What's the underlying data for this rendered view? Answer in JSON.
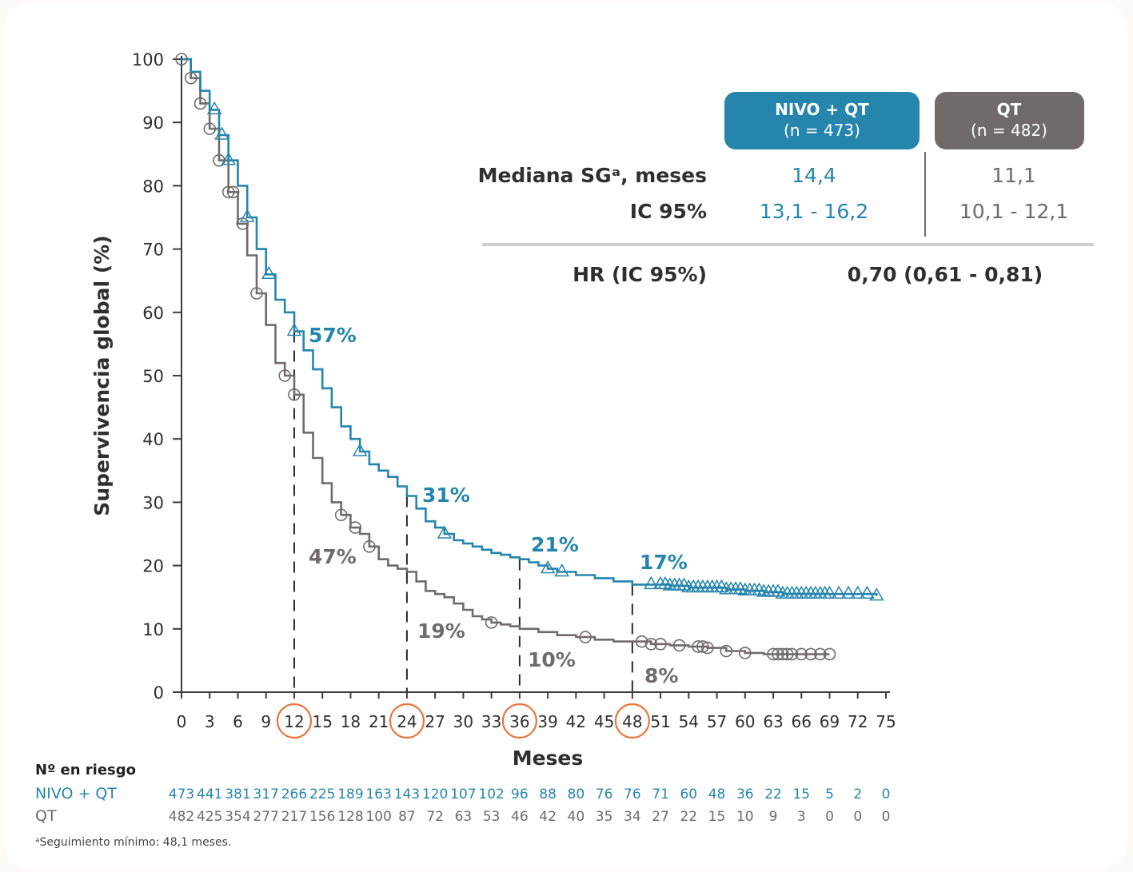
{
  "colors": {
    "nivo": "#2585ad",
    "qt": "#716a6b",
    "accent": "#e8763b",
    "axis": "#3b3b3b",
    "text": "#2f2f2f"
  },
  "chart_data": {
    "type": "line",
    "subtype": "kaplan-meier",
    "xlabel": "Meses",
    "ylabel": "Supervivencia global (%)",
    "xlim": [
      0,
      75
    ],
    "ylim": [
      0,
      100
    ],
    "xticks": [
      0,
      3,
      6,
      9,
      12,
      15,
      18,
      21,
      24,
      27,
      30,
      33,
      36,
      39,
      42,
      45,
      48,
      51,
      54,
      57,
      60,
      63,
      66,
      69,
      72,
      75
    ],
    "yticks": [
      0,
      10,
      20,
      30,
      40,
      50,
      60,
      70,
      80,
      90,
      100
    ],
    "highlighted_xticks": [
      12,
      24,
      36,
      48
    ],
    "grid": false,
    "series": [
      {
        "name": "NIVO + QT",
        "n_label": "(n = 473)",
        "color": "#2585ad",
        "marker": "triangle",
        "x": [
          0,
          1,
          2,
          3,
          4,
          5,
          6,
          7,
          8,
          9,
          10,
          11,
          12,
          13,
          14,
          15,
          16,
          17,
          18,
          19,
          20,
          21,
          22,
          23,
          24,
          25,
          26,
          27,
          28,
          29,
          30,
          31,
          32,
          33,
          34,
          35,
          36,
          37,
          38,
          39,
          40,
          42,
          44,
          46,
          48,
          50,
          52,
          54,
          56,
          58,
          60,
          62,
          64,
          66,
          68,
          70,
          72,
          74
        ],
        "y": [
          100,
          98,
          95,
          92,
          88,
          84,
          80,
          75,
          70,
          66,
          62,
          60,
          57,
          54,
          51,
          48,
          45,
          42,
          40,
          38,
          36,
          35,
          34,
          32.5,
          31,
          29,
          27,
          26,
          25,
          24,
          23.5,
          23,
          22.5,
          22,
          21.7,
          21.3,
          21,
          20.5,
          20,
          19.5,
          19,
          18.5,
          18,
          17.5,
          17,
          17,
          16.8,
          16.5,
          16.5,
          16.2,
          16,
          15.8,
          15.5,
          15.5,
          15.5,
          15.5,
          15.5,
          15.2
        ],
        "censor_x": [
          3.5,
          4.3,
          5,
          7,
          9.3,
          12,
          19,
          28,
          39,
          40.5,
          50,
          51,
          51.5,
          52,
          52.5,
          53,
          53.5,
          54,
          54.5,
          55,
          55.5,
          56,
          56.5,
          57,
          57.5,
          58,
          58.5,
          59,
          59.5,
          60,
          60.5,
          61,
          61.5,
          62,
          62.5,
          63,
          63.5,
          64,
          64.5,
          65,
          65.5,
          66,
          66.5,
          67,
          67.5,
          68,
          68.5,
          69,
          70,
          71,
          72,
          73,
          74
        ]
      },
      {
        "name": "QT",
        "n_label": "(n = 482)",
        "color": "#716a6b",
        "marker": "circle",
        "x": [
          0,
          1,
          2,
          3,
          4,
          5,
          6,
          7,
          8,
          9,
          10,
          11,
          12,
          13,
          14,
          15,
          16,
          17,
          18,
          19,
          20,
          21,
          22,
          23,
          24,
          25,
          26,
          27,
          28,
          29,
          30,
          31,
          32,
          33,
          34,
          35,
          36,
          38,
          40,
          42,
          44,
          46,
          48,
          50,
          52,
          54,
          56,
          58,
          60,
          62,
          64,
          66,
          68,
          69
        ],
        "y": [
          100,
          97,
          93,
          89,
          84,
          79,
          74,
          69,
          63,
          58,
          52,
          50,
          47,
          41,
          37,
          33,
          30,
          28,
          26,
          25,
          23,
          21,
          20,
          19.5,
          19,
          17.5,
          16,
          15.5,
          15,
          14,
          13,
          12,
          11.5,
          11,
          10.7,
          10.4,
          10,
          9.5,
          9,
          8.7,
          8.3,
          8,
          8,
          7.6,
          7.4,
          7.2,
          7,
          6.5,
          6.2,
          6,
          6,
          6,
          6,
          6
        ],
        "censor_x": [
          0,
          1,
          2,
          3,
          4,
          5,
          5.5,
          6.5,
          8,
          11,
          12,
          17,
          18.5,
          20,
          33,
          43,
          49,
          50,
          51,
          53,
          55,
          55.5,
          56,
          58,
          60,
          63,
          63.5,
          64,
          64.5,
          65,
          66,
          67,
          68,
          69
        ]
      }
    ],
    "annotations": {
      "nivo": [
        {
          "x": 12,
          "text": "57%"
        },
        {
          "x": 24,
          "text": "31%"
        },
        {
          "x": 36,
          "text": "21%"
        },
        {
          "x": 48,
          "text": "17%"
        }
      ],
      "qt": [
        {
          "x": 12,
          "text": "47%"
        },
        {
          "x": 24,
          "text": "19%"
        },
        {
          "x": 36,
          "text": "10%"
        },
        {
          "x": 48,
          "text": "8%"
        }
      ]
    },
    "summary_table": {
      "headers": [
        {
          "title": "NIVO + QT",
          "n": "(n = 473)"
        },
        {
          "title": "QT",
          "n": "(n = 482)"
        }
      ],
      "rows": [
        {
          "label": "Mediana SGᵃ, meses",
          "nivo": "14,4",
          "qt": "11,1"
        },
        {
          "label": "IC 95%",
          "nivo": "13,1 - 16,2",
          "qt": "10,1 - 12,1"
        }
      ],
      "hr_label": "HR (IC 95%)",
      "hr_value": "0,70 (0,61 - 0,81)"
    },
    "risk_table": {
      "title": "Nº en riesgo",
      "rows": [
        {
          "label": "NIVO + QT",
          "values": [
            473,
            441,
            381,
            317,
            266,
            225,
            189,
            163,
            143,
            120,
            107,
            102,
            96,
            88,
            80,
            76,
            76,
            71,
            60,
            48,
            36,
            22,
            15,
            5,
            2,
            0
          ]
        },
        {
          "label": "QT",
          "values": [
            482,
            425,
            354,
            277,
            217,
            156,
            128,
            100,
            87,
            72,
            63,
            53,
            46,
            42,
            40,
            35,
            34,
            27,
            22,
            15,
            10,
            9,
            3,
            0,
            0,
            0
          ]
        }
      ]
    },
    "footnote": "ᵃSeguimiento mínimo: 48,1 meses."
  }
}
